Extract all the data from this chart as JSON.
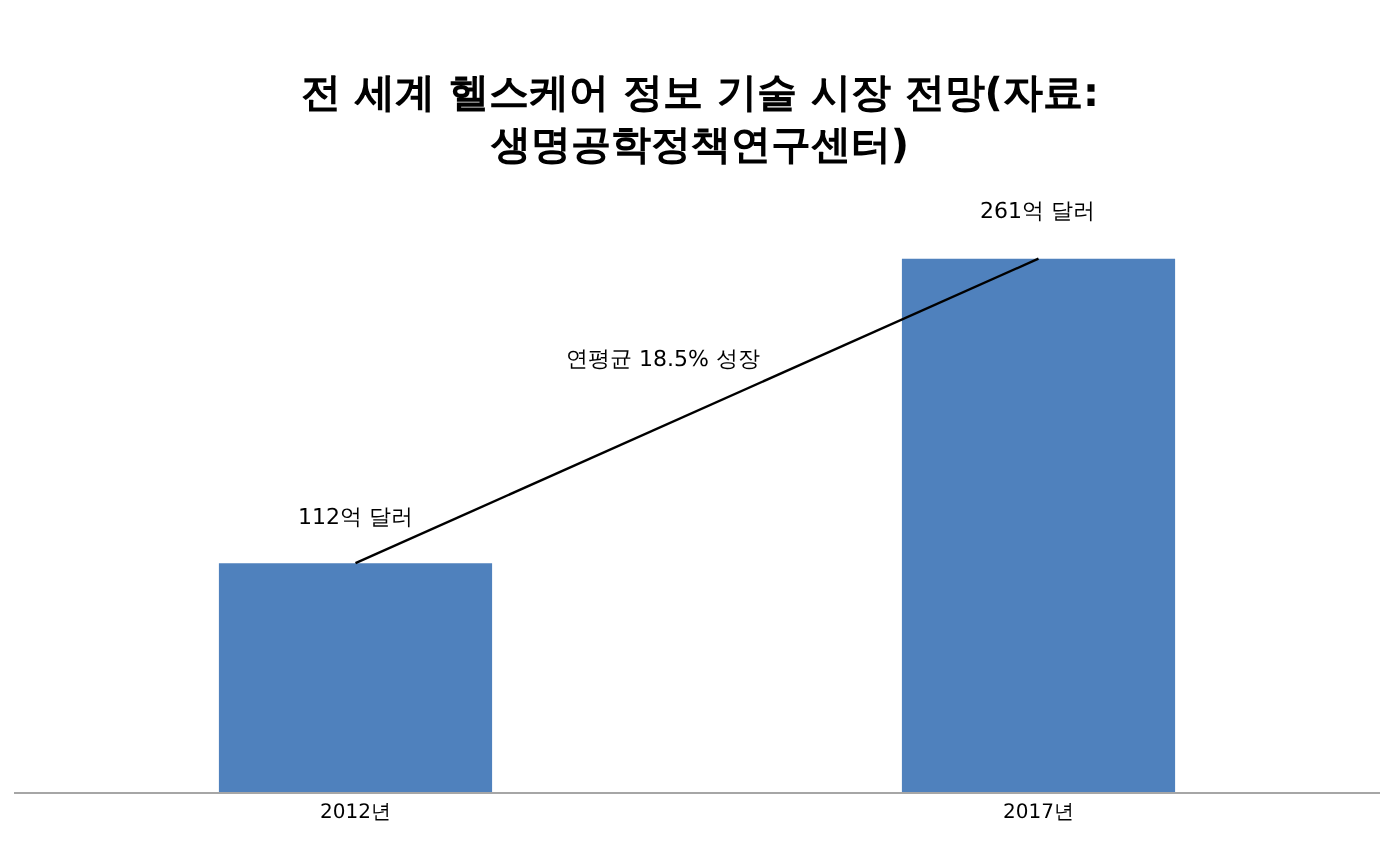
{
  "chart_data": {
    "type": "bar",
    "title": "전 세계 헬스케어 정보 기술 시장 전망(자료: 생명공학정책연구센터)",
    "categories": [
      "2012년",
      "2017년"
    ],
    "series": [
      {
        "color": "#4f81bd",
        "values": [
          112,
          261
        ],
        "value_labels": [
          "112억 달러",
          "261억 달러"
        ]
      },
      {
        "type": "line",
        "color": "#000000",
        "values": [
          112,
          261
        ]
      }
    ],
    "annotations": [
      "연평균 18.5% 성장"
    ]
  }
}
